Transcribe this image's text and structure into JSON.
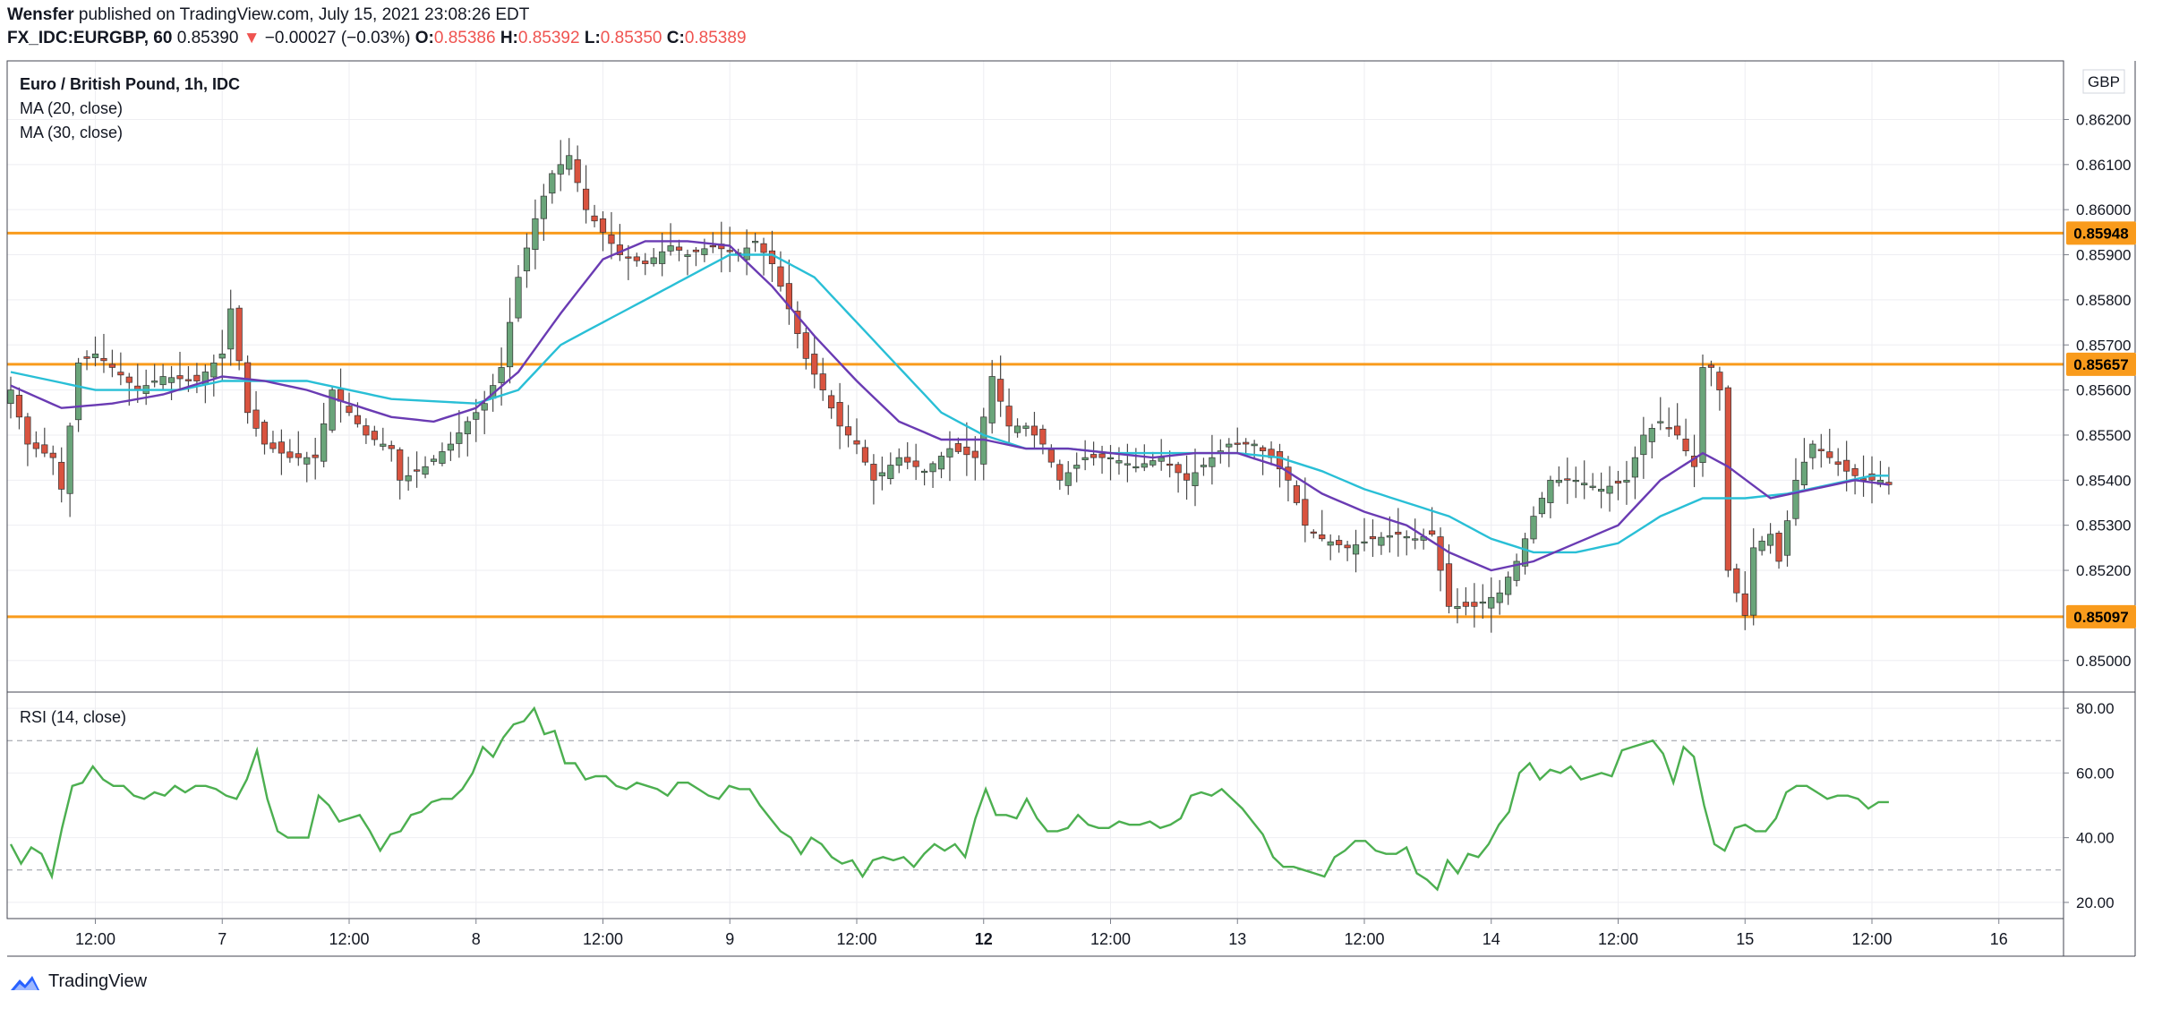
{
  "header": {
    "author": "Wensfer",
    "published": "published on TradingView.com, July 15, 2021 23:08:26 EDT",
    "symbol": "FX_IDC:EURGBP, 60",
    "last": "0.85390",
    "arrow": "▼",
    "change": "−0.00027 (−0.03%)",
    "o_label": "O:",
    "o_value": "0.85386",
    "h_label": "H:",
    "h_value": "0.85392",
    "l_label": "L:",
    "l_value": "0.85350",
    "c_label": "C:",
    "c_value": "0.85389"
  },
  "legend": {
    "title": "Euro / British Pound, 1h, IDC",
    "ma20": "MA (20, close)",
    "ma30": "MA (30, close)",
    "rsi": "RSI (14, close)"
  },
  "currency": "GBP",
  "footer": {
    "brand": "TradingView"
  },
  "colors": {
    "up": "#6aa57a",
    "down": "#d9533f",
    "ma20": "#6a3bb3",
    "ma30": "#29bfd6",
    "level": "#f99b1c",
    "rsi": "#4caf50",
    "grid": "#eeeef2",
    "axis": "#7b7f8a"
  },
  "chart_data": [
    {
      "type": "candlestick",
      "title": "Euro / British Pound, 1h, IDC",
      "ylim": [
        0.8493,
        0.8633
      ],
      "x_count": 240,
      "x_ticks": [
        {
          "i": 10,
          "label": "12:00"
        },
        {
          "i": 25,
          "label": "7"
        },
        {
          "i": 40,
          "label": "12:00"
        },
        {
          "i": 55,
          "label": "8"
        },
        {
          "i": 70,
          "label": "12:00"
        },
        {
          "i": 85,
          "label": "9"
        },
        {
          "i": 100,
          "label": "12:00"
        },
        {
          "i": 115,
          "label": "12",
          "bold": true
        },
        {
          "i": 130,
          "label": "12:00"
        },
        {
          "i": 145,
          "label": "13"
        },
        {
          "i": 160,
          "label": "12:00"
        },
        {
          "i": 175,
          "label": "14"
        },
        {
          "i": 190,
          "label": "12:00"
        },
        {
          "i": 205,
          "label": "15"
        },
        {
          "i": 220,
          "label": "12:00"
        },
        {
          "i": 235,
          "label": "16"
        }
      ],
      "y_ticks": [
        "0.86200",
        "0.86100",
        "0.86000",
        "0.85900",
        "0.85800",
        "0.85700",
        "0.85600",
        "0.85500",
        "0.85400",
        "0.85300",
        "0.85200",
        "0.85000"
      ],
      "levels": [
        {
          "value": 0.85948,
          "label": "0.85948"
        },
        {
          "value": 0.85657,
          "label": "0.85657"
        },
        {
          "value": 0.85097,
          "label": "0.85097"
        }
      ],
      "price_anchors": [
        [
          0,
          0.856
        ],
        [
          2,
          0.8548
        ],
        [
          5,
          0.8545
        ],
        [
          6,
          0.8538
        ],
        [
          8,
          0.8566
        ],
        [
          10,
          0.8568
        ],
        [
          12,
          0.8565
        ],
        [
          15,
          0.856
        ],
        [
          18,
          0.8563
        ],
        [
          22,
          0.8562
        ],
        [
          25,
          0.8568
        ],
        [
          26,
          0.8578
        ],
        [
          28,
          0.8555
        ],
        [
          30,
          0.8548
        ],
        [
          33,
          0.8545
        ],
        [
          36,
          0.8545
        ],
        [
          38,
          0.856
        ],
        [
          40,
          0.8555
        ],
        [
          42,
          0.855
        ],
        [
          45,
          0.8547
        ],
        [
          46,
          0.854
        ],
        [
          49,
          0.8543
        ],
        [
          52,
          0.8548
        ],
        [
          54,
          0.8553
        ],
        [
          56,
          0.8557
        ],
        [
          58,
          0.8565
        ],
        [
          60,
          0.8585
        ],
        [
          62,
          0.8598
        ],
        [
          64,
          0.8608
        ],
        [
          66,
          0.8612
        ],
        [
          68,
          0.86
        ],
        [
          70,
          0.8595
        ],
        [
          72,
          0.859
        ],
        [
          75,
          0.8588
        ],
        [
          78,
          0.8592
        ],
        [
          80,
          0.859
        ],
        [
          83,
          0.8592
        ],
        [
          86,
          0.859
        ],
        [
          88,
          0.8593
        ],
        [
          90,
          0.8588
        ],
        [
          92,
          0.8578
        ],
        [
          94,
          0.8567
        ],
        [
          96,
          0.856
        ],
        [
          98,
          0.8552
        ],
        [
          100,
          0.8548
        ],
        [
          102,
          0.854
        ],
        [
          105,
          0.8545
        ],
        [
          108,
          0.8542
        ],
        [
          111,
          0.8547
        ],
        [
          114,
          0.8545
        ],
        [
          116,
          0.8563
        ],
        [
          118,
          0.8552
        ],
        [
          120,
          0.8552
        ],
        [
          122,
          0.8548
        ],
        [
          124,
          0.854
        ],
        [
          127,
          0.8545
        ],
        [
          130,
          0.8545
        ],
        [
          133,
          0.8543
        ],
        [
          136,
          0.8545
        ],
        [
          139,
          0.854
        ],
        [
          142,
          0.8545
        ],
        [
          144,
          0.8548
        ],
        [
          147,
          0.8548
        ],
        [
          149,
          0.8545
        ],
        [
          151,
          0.854
        ],
        [
          153,
          0.853
        ],
        [
          155,
          0.8527
        ],
        [
          158,
          0.8525
        ],
        [
          161,
          0.8527
        ],
        [
          164,
          0.8528
        ],
        [
          166,
          0.8527
        ],
        [
          168,
          0.8528
        ],
        [
          170,
          0.8512
        ],
        [
          173,
          0.8512
        ],
        [
          176,
          0.8515
        ],
        [
          178,
          0.8522
        ],
        [
          180,
          0.8532
        ],
        [
          182,
          0.854
        ],
        [
          185,
          0.854
        ],
        [
          188,
          0.8538
        ],
        [
          191,
          0.854
        ],
        [
          193,
          0.855
        ],
        [
          195,
          0.8553
        ],
        [
          197,
          0.855
        ],
        [
          199,
          0.8543
        ],
        [
          200,
          0.8565
        ],
        [
          201,
          0.8565
        ],
        [
          202,
          0.856
        ],
        [
          203,
          0.852
        ],
        [
          205,
          0.851
        ],
        [
          206,
          0.8525
        ],
        [
          208,
          0.8528
        ],
        [
          209,
          0.8522
        ],
        [
          211,
          0.854
        ],
        [
          213,
          0.8548
        ],
        [
          215,
          0.8545
        ],
        [
          217,
          0.8542
        ],
        [
          219,
          0.854
        ],
        [
          221,
          0.854
        ],
        [
          222,
          0.8539
        ]
      ],
      "ma20_anchors": [
        [
          0,
          0.8561
        ],
        [
          6,
          0.8556
        ],
        [
          12,
          0.8557
        ],
        [
          18,
          0.8559
        ],
        [
          25,
          0.8563
        ],
        [
          30,
          0.8562
        ],
        [
          35,
          0.856
        ],
        [
          40,
          0.8557
        ],
        [
          45,
          0.8554
        ],
        [
          50,
          0.8553
        ],
        [
          55,
          0.8556
        ],
        [
          60,
          0.8564
        ],
        [
          65,
          0.8577
        ],
        [
          70,
          0.8589
        ],
        [
          75,
          0.8593
        ],
        [
          80,
          0.8593
        ],
        [
          85,
          0.8592
        ],
        [
          90,
          0.8583
        ],
        [
          95,
          0.8572
        ],
        [
          100,
          0.8562
        ],
        [
          105,
          0.8553
        ],
        [
          110,
          0.8549
        ],
        [
          115,
          0.8549
        ],
        [
          120,
          0.8547
        ],
        [
          125,
          0.8547
        ],
        [
          130,
          0.8546
        ],
        [
          135,
          0.8545
        ],
        [
          140,
          0.8546
        ],
        [
          145,
          0.8546
        ],
        [
          150,
          0.8543
        ],
        [
          155,
          0.8537
        ],
        [
          160,
          0.8533
        ],
        [
          165,
          0.853
        ],
        [
          170,
          0.8524
        ],
        [
          175,
          0.852
        ],
        [
          180,
          0.8522
        ],
        [
          185,
          0.8526
        ],
        [
          190,
          0.853
        ],
        [
          195,
          0.854
        ],
        [
          200,
          0.8546
        ],
        [
          203,
          0.8543
        ],
        [
          208,
          0.8536
        ],
        [
          213,
          0.8538
        ],
        [
          218,
          0.854
        ],
        [
          222,
          0.8539
        ]
      ],
      "ma30_anchors": [
        [
          0,
          0.8564
        ],
        [
          10,
          0.856
        ],
        [
          20,
          0.856
        ],
        [
          25,
          0.8562
        ],
        [
          35,
          0.8562
        ],
        [
          45,
          0.8558
        ],
        [
          55,
          0.8557
        ],
        [
          60,
          0.856
        ],
        [
          65,
          0.857
        ],
        [
          70,
          0.8575
        ],
        [
          75,
          0.858
        ],
        [
          80,
          0.8585
        ],
        [
          85,
          0.859
        ],
        [
          90,
          0.859
        ],
        [
          95,
          0.8585
        ],
        [
          100,
          0.8575
        ],
        [
          105,
          0.8565
        ],
        [
          110,
          0.8555
        ],
        [
          115,
          0.855
        ],
        [
          120,
          0.8547
        ],
        [
          125,
          0.8547
        ],
        [
          130,
          0.8546
        ],
        [
          135,
          0.8546
        ],
        [
          140,
          0.8546
        ],
        [
          145,
          0.8546
        ],
        [
          150,
          0.8545
        ],
        [
          155,
          0.8542
        ],
        [
          160,
          0.8538
        ],
        [
          165,
          0.8535
        ],
        [
          170,
          0.8532
        ],
        [
          175,
          0.8527
        ],
        [
          180,
          0.8524
        ],
        [
          185,
          0.8524
        ],
        [
          190,
          0.8526
        ],
        [
          195,
          0.8532
        ],
        [
          200,
          0.8536
        ],
        [
          205,
          0.8536
        ],
        [
          210,
          0.8537
        ],
        [
          215,
          0.8539
        ],
        [
          220,
          0.8541
        ],
        [
          222,
          0.8541
        ]
      ]
    },
    {
      "type": "line",
      "title": "RSI (14, close)",
      "ylim": [
        15,
        85
      ],
      "y_ticks": [
        "80.00",
        "60.00",
        "40.00",
        "20.00"
      ],
      "bands": [
        70,
        30
      ],
      "values": [
        38,
        32,
        37,
        35,
        28,
        43,
        56,
        57,
        62,
        58,
        56,
        56,
        53,
        52,
        54,
        53,
        56,
        54,
        56,
        56,
        55,
        53,
        52,
        58,
        67,
        52,
        42,
        40,
        40,
        40,
        53,
        50,
        45,
        46,
        47,
        42,
        36,
        41,
        42,
        47,
        48,
        51,
        52,
        52,
        55,
        60,
        68,
        65,
        71,
        75,
        76,
        80,
        72,
        73,
        63,
        63,
        58,
        59,
        59,
        56,
        55,
        57,
        56,
        55,
        53,
        57,
        57,
        55,
        53,
        52,
        56,
        55,
        55,
        50,
        46,
        42,
        40,
        35,
        40,
        38,
        34,
        32,
        33,
        28,
        33,
        34,
        33,
        34,
        31,
        35,
        38,
        36,
        38,
        34,
        46,
        55,
        47,
        47,
        46,
        52,
        46,
        42,
        42,
        43,
        47,
        44,
        43,
        43,
        45,
        44,
        44,
        45,
        43,
        44,
        46,
        53,
        54,
        53,
        55,
        52,
        49,
        45,
        41,
        34,
        31,
        31,
        30,
        29,
        28,
        34,
        36,
        39,
        39,
        36,
        35,
        35,
        37,
        29,
        27,
        24,
        33,
        29,
        35,
        34,
        38,
        44,
        48,
        60,
        63,
        58,
        61,
        60,
        62,
        58,
        59,
        60,
        59,
        67,
        68,
        69,
        70,
        66,
        57,
        68,
        65,
        50,
        38,
        36,
        43,
        44,
        42,
        42,
        46,
        54,
        56,
        56,
        54,
        52,
        53,
        53,
        52,
        49,
        51,
        51
      ]
    }
  ]
}
